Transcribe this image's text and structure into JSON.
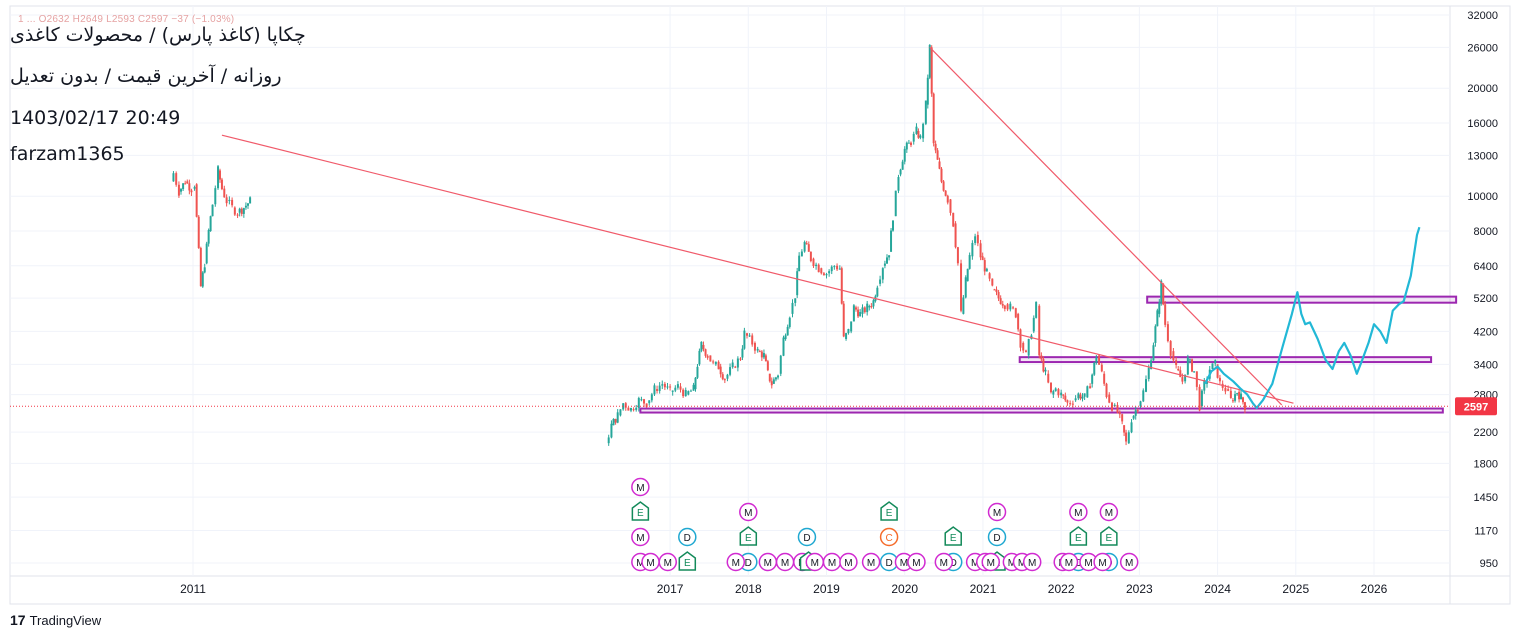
{
  "header": {
    "title": "چکاپا (کاغذ پارس) / محصولات کاغذی",
    "subtitle": "روزانه / آخرین قیمت / بدون تعدیل",
    "datetime": "1403/02/17 20:49",
    "author": "farzam1365",
    "ohlc_line": "1 ... O2632 H2649 L2593 C2597 −37 (−1.03%)"
  },
  "brand": {
    "logo": "17",
    "name": "TradingView"
  },
  "colors": {
    "up": "#26a69a",
    "down": "#ef5350",
    "trendline": "#f05a6a",
    "zone": "#9c27b0",
    "projection": "#22b8d6",
    "price_tag": "#f23645"
  },
  "chart_data": {
    "type": "candlestick",
    "title": "چکاپا (کاغذ پارس) / محصولات کاغذی",
    "scale": "log",
    "ylim": [
      900,
      32000
    ],
    "y_ticks": [
      32000,
      26000,
      20000,
      16000,
      13000,
      10000,
      8000,
      6400,
      5200,
      4200,
      3400,
      2800,
      2200,
      1800,
      1450,
      1170,
      950
    ],
    "x_ticks": [
      {
        "label": "2011",
        "t": 2010.9
      },
      {
        "label": "2017",
        "t": 2017.0
      },
      {
        "label": "2018",
        "t": 2018.0
      },
      {
        "label": "2019",
        "t": 2019.0
      },
      {
        "label": "2020",
        "t": 2020.0
      },
      {
        "label": "2021",
        "t": 2021.0
      },
      {
        "label": "2022",
        "t": 2022.0
      },
      {
        "label": "2023",
        "t": 2023.0
      },
      {
        "label": "2024",
        "t": 2024.0
      },
      {
        "label": "2025",
        "t": 2025.0
      },
      {
        "label": "2026",
        "t": 2026.0
      }
    ],
    "last_price": {
      "value": 2597,
      "label": "2597"
    },
    "price_path": [
      [
        2010.63,
        11000
      ],
      [
        2010.65,
        11600
      ],
      [
        2010.72,
        10300
      ],
      [
        2010.8,
        11000
      ],
      [
        2010.88,
        10500
      ],
      [
        2010.92,
        10800
      ],
      [
        2011.0,
        5600
      ],
      [
        2011.05,
        6500
      ],
      [
        2011.1,
        8000
      ],
      [
        2011.15,
        9500
      ],
      [
        2011.22,
        11800
      ],
      [
        2011.27,
        10500
      ],
      [
        2011.33,
        9700
      ],
      [
        2011.4,
        9300
      ],
      [
        2011.47,
        9000
      ],
      [
        2011.55,
        9300
      ],
      [
        2011.63,
        9700
      ],
      [
        2016.18,
        2050
      ],
      [
        2016.25,
        2300
      ],
      [
        2016.33,
        2450
      ],
      [
        2016.4,
        2650
      ],
      [
        2016.5,
        2550
      ],
      [
        2016.6,
        2700
      ],
      [
        2016.7,
        2650
      ],
      [
        2016.8,
        2900
      ],
      [
        2016.9,
        3000
      ],
      [
        2017.0,
        2850
      ],
      [
        2017.1,
        2950
      ],
      [
        2017.2,
        2800
      ],
      [
        2017.3,
        2900
      ],
      [
        2017.35,
        3400
      ],
      [
        2017.4,
        3850
      ],
      [
        2017.48,
        3600
      ],
      [
        2017.55,
        3400
      ],
      [
        2017.62,
        3350
      ],
      [
        2017.7,
        3100
      ],
      [
        2017.8,
        3350
      ],
      [
        2017.9,
        3550
      ],
      [
        2017.95,
        4150
      ],
      [
        2018.05,
        3900
      ],
      [
        2018.12,
        3700
      ],
      [
        2018.2,
        3600
      ],
      [
        2018.25,
        3200
      ],
      [
        2018.3,
        3000
      ],
      [
        2018.38,
        3200
      ],
      [
        2018.45,
        4000
      ],
      [
        2018.53,
        4700
      ],
      [
        2018.6,
        5300
      ],
      [
        2018.65,
        6800
      ],
      [
        2018.72,
        7400
      ],
      [
        2018.8,
        6700
      ],
      [
        2018.9,
        6300
      ],
      [
        2019.0,
        6100
      ],
      [
        2019.1,
        6400
      ],
      [
        2019.17,
        6300
      ],
      [
        2019.22,
        4000
      ],
      [
        2019.28,
        4200
      ],
      [
        2019.35,
        4900
      ],
      [
        2019.43,
        4700
      ],
      [
        2019.52,
        4900
      ],
      [
        2019.6,
        5100
      ],
      [
        2019.65,
        5700
      ],
      [
        2019.72,
        6400
      ],
      [
        2019.8,
        7000
      ],
      [
        2019.85,
        8800
      ],
      [
        2019.92,
        11500
      ],
      [
        2020.0,
        13500
      ],
      [
        2020.08,
        14200
      ],
      [
        2020.15,
        15200
      ],
      [
        2020.2,
        14500
      ],
      [
        2020.27,
        18000
      ],
      [
        2020.32,
        26000
      ],
      [
        2020.37,
        14000
      ],
      [
        2020.42,
        12500
      ],
      [
        2020.47,
        11000
      ],
      [
        2020.55,
        9800
      ],
      [
        2020.62,
        8400
      ],
      [
        2020.68,
        6500
      ],
      [
        2020.72,
        4700
      ],
      [
        2020.78,
        5800
      ],
      [
        2020.83,
        6800
      ],
      [
        2020.9,
        7800
      ],
      [
        2020.97,
        6800
      ],
      [
        2021.05,
        6100
      ],
      [
        2021.12,
        5500
      ],
      [
        2021.2,
        5200
      ],
      [
        2021.28,
        5000
      ],
      [
        2021.35,
        4900
      ],
      [
        2021.42,
        4700
      ],
      [
        2021.48,
        3900
      ],
      [
        2021.55,
        3600
      ],
      [
        2021.62,
        4200
      ],
      [
        2021.68,
        4950
      ],
      [
        2021.72,
        3600
      ],
      [
        2021.8,
        3200
      ],
      [
        2021.87,
        2800
      ],
      [
        2021.93,
        2900
      ],
      [
        2022.0,
        2800
      ],
      [
        2022.08,
        2650
      ],
      [
        2022.15,
        2700
      ],
      [
        2022.22,
        2800
      ],
      [
        2022.3,
        2750
      ],
      [
        2022.37,
        3000
      ],
      [
        2022.45,
        3600
      ],
      [
        2022.52,
        3200
      ],
      [
        2022.58,
        2800
      ],
      [
        2022.65,
        2600
      ],
      [
        2022.72,
        2500
      ],
      [
        2022.78,
        2300
      ],
      [
        2022.83,
        2050
      ],
      [
        2022.9,
        2400
      ],
      [
        2022.98,
        2600
      ],
      [
        2023.05,
        2850
      ],
      [
        2023.12,
        3300
      ],
      [
        2023.18,
        3900
      ],
      [
        2023.23,
        4700
      ],
      [
        2023.28,
        5700
      ],
      [
        2023.33,
        4400
      ],
      [
        2023.4,
        3700
      ],
      [
        2023.47,
        3300
      ],
      [
        2023.55,
        3050
      ],
      [
        2023.62,
        3500
      ],
      [
        2023.7,
        3250
      ],
      [
        2023.77,
        2600
      ],
      [
        2023.83,
        3000
      ],
      [
        2023.9,
        3300
      ],
      [
        2023.97,
        3400
      ],
      [
        2024.03,
        3000
      ],
      [
        2024.1,
        2900
      ],
      [
        2024.17,
        2700
      ],
      [
        2024.25,
        2850
      ],
      [
        2024.3,
        2750
      ],
      [
        2024.35,
        2597
      ]
    ],
    "trendlines": [
      {
        "from": [
          2011.27,
          14800
        ],
        "to": [
          2024.97,
          2650
        ]
      },
      {
        "from": [
          2020.32,
          26000
        ],
        "to": [
          2024.82,
          2620
        ]
      }
    ],
    "zones": [
      {
        "t1": 2016.62,
        "t2": 2026.88,
        "low": 2510,
        "high": 2560
      },
      {
        "t1": 2021.47,
        "t2": 2026.73,
        "low": 3450,
        "high": 3560
      },
      {
        "t1": 2023.1,
        "t2": 2027.05,
        "low": 5050,
        "high": 5250
      }
    ],
    "projection": [
      [
        2023.84,
        3000
      ],
      [
        2023.92,
        3250
      ],
      [
        2024.0,
        3350
      ],
      [
        2024.08,
        3200
      ],
      [
        2024.2,
        3050
      ],
      [
        2024.3,
        2900
      ],
      [
        2024.38,
        2800
      ],
      [
        2024.45,
        2650
      ],
      [
        2024.5,
        2570
      ],
      [
        2024.58,
        2700
      ],
      [
        2024.7,
        3000
      ],
      [
        2024.83,
        3800
      ],
      [
        2024.95,
        4700
      ],
      [
        2025.02,
        5400
      ],
      [
        2025.07,
        4700
      ],
      [
        2025.12,
        4400
      ],
      [
        2025.18,
        4450
      ],
      [
        2025.28,
        4000
      ],
      [
        2025.38,
        3500
      ],
      [
        2025.47,
        3300
      ],
      [
        2025.55,
        3700
      ],
      [
        2025.62,
        3900
      ],
      [
        2025.7,
        3600
      ],
      [
        2025.78,
        3200
      ],
      [
        2025.85,
        3500
      ],
      [
        2025.93,
        3900
      ],
      [
        2026.0,
        4400
      ],
      [
        2026.08,
        4200
      ],
      [
        2026.16,
        3900
      ],
      [
        2026.24,
        4800
      ],
      [
        2026.32,
        5000
      ],
      [
        2026.38,
        5100
      ],
      [
        2026.47,
        6000
      ],
      [
        2026.55,
        7800
      ],
      [
        2026.58,
        8200
      ]
    ],
    "events": [
      {
        "t": 2016.62,
        "row": 0,
        "type": "M"
      },
      {
        "t": 2016.62,
        "row": 1,
        "type": "E"
      },
      {
        "t": 2016.62,
        "row": 2,
        "type": "M"
      },
      {
        "t": 2016.62,
        "row": 3,
        "type": "M"
      },
      {
        "t": 2016.75,
        "row": 3,
        "type": "M"
      },
      {
        "t": 2016.97,
        "row": 3,
        "type": "M"
      },
      {
        "t": 2017.22,
        "row": 2,
        "type": "D"
      },
      {
        "t": 2017.22,
        "row": 3,
        "type": "E"
      },
      {
        "t": 2018.0,
        "row": 1,
        "type": "M"
      },
      {
        "t": 2018.0,
        "row": 2,
        "type": "E"
      },
      {
        "t": 2018.0,
        "row": 3,
        "type": "D"
      },
      {
        "t": 2017.84,
        "row": 3,
        "type": "M"
      },
      {
        "t": 2018.25,
        "row": 3,
        "type": "M"
      },
      {
        "t": 2018.47,
        "row": 3,
        "type": "M"
      },
      {
        "t": 2018.75,
        "row": 2,
        "type": "D"
      },
      {
        "t": 2018.69,
        "row": 3,
        "type": "M"
      },
      {
        "t": 2018.77,
        "row": 3,
        "type": "E"
      },
      {
        "t": 2018.85,
        "row": 3,
        "type": "M"
      },
      {
        "t": 2019.07,
        "row": 3,
        "type": "M"
      },
      {
        "t": 2019.28,
        "row": 3,
        "type": "M"
      },
      {
        "t": 2019.8,
        "row": 1,
        "type": "E"
      },
      {
        "t": 2019.8,
        "row": 2,
        "type": "C"
      },
      {
        "t": 2019.8,
        "row": 3,
        "type": "D"
      },
      {
        "t": 2019.57,
        "row": 3,
        "type": "M"
      },
      {
        "t": 2019.99,
        "row": 3,
        "type": "M"
      },
      {
        "t": 2020.15,
        "row": 3,
        "type": "M"
      },
      {
        "t": 2020.62,
        "row": 2,
        "type": "E"
      },
      {
        "t": 2020.62,
        "row": 3,
        "type": "D"
      },
      {
        "t": 2020.5,
        "row": 3,
        "type": "M"
      },
      {
        "t": 2020.9,
        "row": 3,
        "type": "M"
      },
      {
        "t": 2021.03,
        "row": 3,
        "type": "M"
      },
      {
        "t": 2021.18,
        "row": 1,
        "type": "M"
      },
      {
        "t": 2021.18,
        "row": 2,
        "type": "D"
      },
      {
        "t": 2021.18,
        "row": 3,
        "type": "E"
      },
      {
        "t": 2021.1,
        "row": 3,
        "type": "M"
      },
      {
        "t": 2021.37,
        "row": 3,
        "type": "M"
      },
      {
        "t": 2021.5,
        "row": 3,
        "type": "M"
      },
      {
        "t": 2021.63,
        "row": 3,
        "type": "M"
      },
      {
        "t": 2022.22,
        "row": 1,
        "type": "M"
      },
      {
        "t": 2022.22,
        "row": 2,
        "type": "E"
      },
      {
        "t": 2022.22,
        "row": 3,
        "type": "D"
      },
      {
        "t": 2022.02,
        "row": 3,
        "type": "M"
      },
      {
        "t": 2022.1,
        "row": 3,
        "type": "M"
      },
      {
        "t": 2022.35,
        "row": 3,
        "type": "M"
      },
      {
        "t": 2022.61,
        "row": 1,
        "type": "M"
      },
      {
        "t": 2022.61,
        "row": 2,
        "type": "E"
      },
      {
        "t": 2022.61,
        "row": 3,
        "type": "D"
      },
      {
        "t": 2022.53,
        "row": 3,
        "type": "M"
      },
      {
        "t": 2022.87,
        "row": 3,
        "type": "M"
      }
    ]
  }
}
